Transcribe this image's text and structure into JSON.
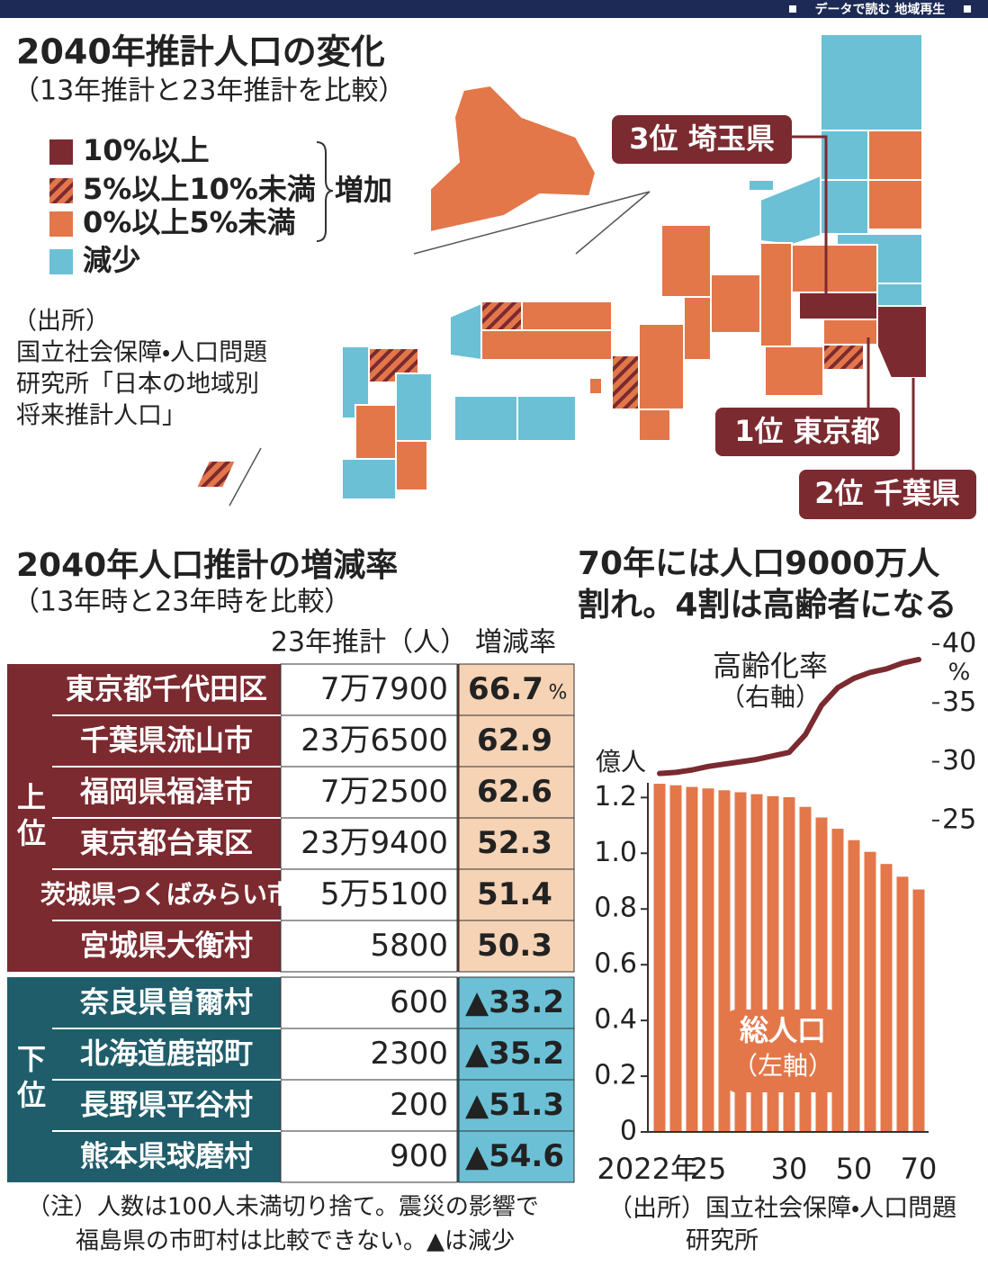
{
  "header": {
    "banner": "データで読む 地域再生"
  },
  "map": {
    "title": "2040年推計人口の変化",
    "subtitle": "（13年推計と23年推計を比較）",
    "legend": [
      {
        "label": "10%以上",
        "color": "#7b2a30"
      },
      {
        "label": "5%以上10%未満",
        "color": "#d9483b"
      },
      {
        "label": "0%以上5%未満",
        "color": "#e3774a"
      },
      {
        "label": "減少",
        "color": "#6bc0d6"
      }
    ],
    "legend_group": "増加",
    "source": [
      "（出所）",
      "国立社会保障・人口問題",
      "研究所「日本の地域別",
      "将来推計人口」"
    ],
    "rankings": [
      "3位 埼玉県",
      "1位 東京都",
      "2位 千葉県"
    ]
  },
  "table": {
    "title": "2040年人口推計の増減率",
    "subtitle": "（13年時と23年時を比較）",
    "columns": [
      "23年推計（人）",
      "増減率"
    ],
    "unit": "%",
    "groups": [
      {
        "label": "上位",
        "rows": [
          [
            "東京都千代田区",
            "7万7900",
            "66.7"
          ],
          [
            "千葉県流山市",
            "23万6500",
            "62.9"
          ],
          [
            "福岡県福津市",
            "7万2500",
            "62.6"
          ],
          [
            "東京都台東区",
            "23万9400",
            "52.3"
          ],
          [
            "茨城県つくばみらい市",
            "5万5100",
            "51.4"
          ],
          [
            "宮城県大衡村",
            "5800",
            "50.3"
          ]
        ]
      },
      {
        "label": "下位",
        "rows": [
          [
            "奈良県曽爾村",
            "600",
            "▲33.2"
          ],
          [
            "北海道鹿部町",
            "2300",
            "▲35.2"
          ],
          [
            "長野県平谷村",
            "200",
            "▲51.3"
          ],
          [
            "熊本県球磨村",
            "900",
            "▲54.6"
          ]
        ]
      }
    ],
    "note": [
      "（注）人数は100人未満切り捨て。震災の影響で",
      "福島県の市町村は比較できない。▲は減少"
    ]
  },
  "chart_data": {
    "type": "bar",
    "title": [
      "70年には人口9000万人",
      "割れ。4割は高齢者になる"
    ],
    "categories": [
      "2022年",
      null,
      null,
      "25",
      null,
      null,
      null,
      null,
      "30",
      null,
      null,
      null,
      "50",
      null,
      null,
      null,
      "70"
    ],
    "series": [
      {
        "name": "総人口",
        "note": "（左軸）",
        "type": "bar",
        "color": "#e3774a",
        "values": [
          1.2495,
          1.244,
          1.238,
          1.2326,
          1.226,
          1.219,
          1.212,
          1.205,
          1.2012,
          1.1664,
          1.1284,
          1.088,
          1.0469,
          1.0051,
          0.9615,
          0.9159,
          0.87
        ]
      },
      {
        "name": "高齢化率",
        "note": "（右軸）",
        "type": "line",
        "color": "#7b2a30",
        "axis": "y2",
        "values": [
          29.0,
          29.1,
          29.3,
          29.6,
          29.8,
          30.0,
          30.2,
          30.5,
          30.8,
          32.3,
          34.8,
          36.3,
          37.1,
          37.6,
          37.9,
          38.4,
          38.7
        ]
      }
    ],
    "ylabel": "億人",
    "y2label": "%",
    "ylim": [
      0,
      1.75
    ],
    "yticks": [
      0,
      0.2,
      0.4,
      0.6,
      0.8,
      {
        "value": 1,
        "label": "1.0"
      },
      1.2
    ],
    "y2lim": [
      -1.5,
      40
    ],
    "y2ticks": [
      25,
      30,
      35,
      40
    ],
    "source": [
      "（出所）国立社会保障・人口問題",
      "研究所"
    ]
  }
}
